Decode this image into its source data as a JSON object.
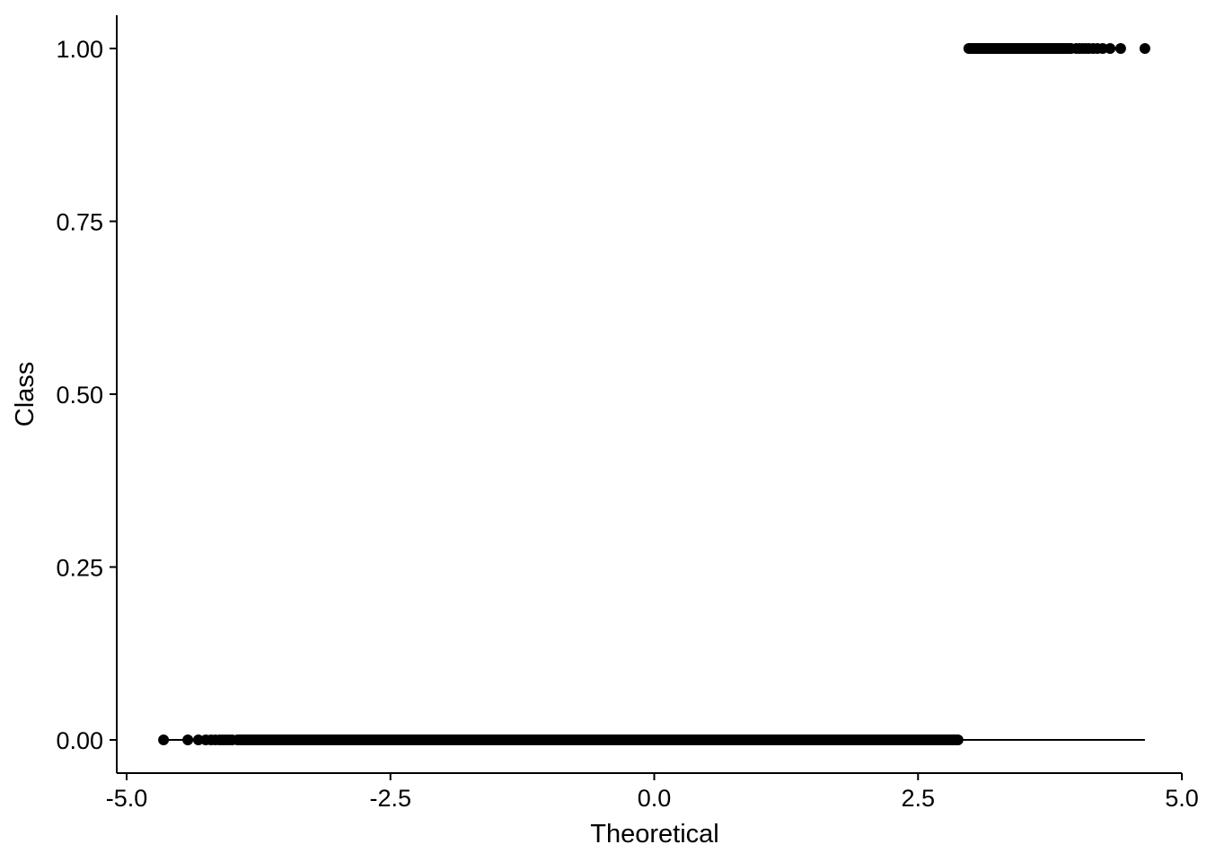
{
  "chart_data": {
    "type": "scatter",
    "title": "",
    "xlabel": "Theoretical",
    "ylabel": "Class",
    "xlim": [
      -5.0,
      5.0
    ],
    "ylim": [
      0.0,
      1.0
    ],
    "grid": false,
    "x_ticks": [
      -5.0,
      -2.5,
      0.0,
      2.5,
      5.0
    ],
    "x_tick_labels": [
      "-5.0",
      "-2.5",
      "0.0",
      "2.5",
      "5.0"
    ],
    "y_ticks": [
      0.0,
      0.25,
      0.5,
      0.75,
      1.0
    ],
    "y_tick_labels": [
      "0.00",
      "0.25",
      "0.50",
      "0.75",
      "1.00"
    ],
    "series": [
      {
        "points": [
          {
            "x": -4.65,
            "y": 0
          },
          {
            "x": -4.42,
            "y": 0
          },
          {
            "x": -4.32,
            "y": 0
          },
          {
            "x": -4.25,
            "y": 0
          },
          {
            "x": -4.2,
            "y": 0
          },
          {
            "x": -4.16,
            "y": 0
          },
          {
            "x": -4.12,
            "y": 0
          },
          {
            "x": -4.09,
            "y": 0
          },
          {
            "x": -4.06,
            "y": 0
          },
          {
            "x": -4.03,
            "y": 0
          },
          {
            "x": -4.0,
            "y": 0
          },
          {
            "x_range": [
              -4.0,
              2.93
            ],
            "y": 0,
            "dense": true
          },
          {
            "x_range": [
              2.93,
              4.0
            ],
            "y": 1,
            "dense": true
          },
          {
            "x": 4.0,
            "y": 1
          },
          {
            "x": 4.03,
            "y": 1
          },
          {
            "x": 4.06,
            "y": 1
          },
          {
            "x": 4.09,
            "y": 1
          },
          {
            "x": 4.12,
            "y": 1
          },
          {
            "x": 4.16,
            "y": 1
          },
          {
            "x": 4.2,
            "y": 1
          },
          {
            "x": 4.25,
            "y": 1
          },
          {
            "x": 4.32,
            "y": 1
          },
          {
            "x": 4.42,
            "y": 1
          },
          {
            "x": 4.65,
            "y": 1
          }
        ]
      }
    ],
    "reference_line": {
      "x": [
        -4.65,
        4.65
      ],
      "y": [
        0,
        0
      ]
    }
  }
}
